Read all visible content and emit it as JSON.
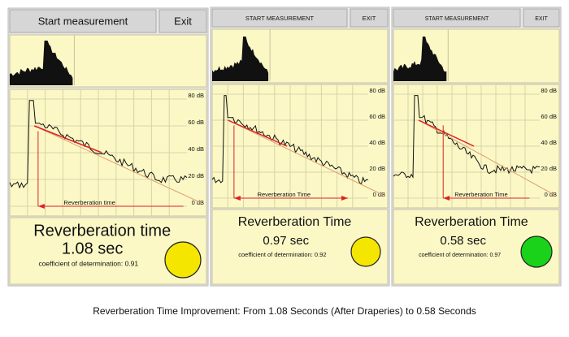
{
  "panels": [
    {
      "buttons": [
        "Start measurement",
        "Exit"
      ],
      "axis_labels": [
        "80 dB",
        "60 dB",
        "40 dB",
        "20 dB",
        "0 dB"
      ],
      "arrow_label": "Reverberation time",
      "title": "Reverberation time",
      "value": "1.08 sec",
      "coefficient": "coefficient of determination:  0.91",
      "indicator_color": "#f5e600"
    },
    {
      "buttons": [
        "START MEASUREMENT",
        "EXIT"
      ],
      "axis_labels": [
        "80 dB",
        "60 dB",
        "40 dB",
        "20 dB",
        "0 dB"
      ],
      "arrow_label": "Reverberation Time",
      "title": "Reverberation Time",
      "value": "0.97 sec",
      "coefficient": "coefficient of determination:  0.92",
      "indicator_color": "#f5e600"
    },
    {
      "buttons": [
        "START MEASUREMENT",
        "EXIT"
      ],
      "axis_labels": [
        "80 dB",
        "60 dB",
        "40 dB",
        "20 dB",
        "0 dB"
      ],
      "arrow_label": "Reverberation Time",
      "title": "Reverberation Time",
      "value": "0.58 sec",
      "coefficient": "coefficient of determination:  0.97",
      "indicator_color": "#19d219"
    }
  ],
  "caption": "Reverberation Time Improvement: From 1.08 Seconds (After Draperies) to 0.58 Seconds"
}
